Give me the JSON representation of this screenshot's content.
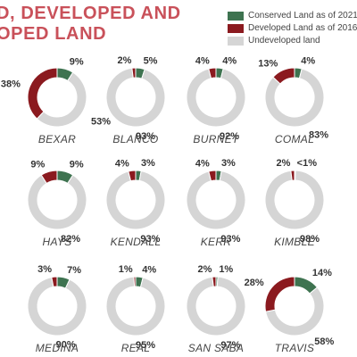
{
  "header": {
    "title_line1": "D, DEVELOPED AND",
    "title_line2": "OPED LAND"
  },
  "colors": {
    "conserved": "#3e7350",
    "developed": "#8b1a1f",
    "undeveloped": "#d5d5d5",
    "title": "#c9515a"
  },
  "legend": [
    {
      "label": "Conserved Land as of 2021",
      "color_key": "conserved"
    },
    {
      "label": "Developed Land as of 2016",
      "color_key": "developed"
    },
    {
      "label": "Undeveloped land",
      "color_key": "undeveloped"
    }
  ],
  "chart_data": {
    "type": "pie",
    "style": "donut",
    "series_names": [
      "Conserved Land as of 2021",
      "Developed Land as of 2016",
      "Undeveloped land"
    ],
    "charts": [
      {
        "county": "BEXAR",
        "conserved": 9,
        "developed": 38,
        "undeveloped": 53,
        "labels": {
          "conserved": "9%",
          "developed": "38%",
          "undeveloped": "53%"
        }
      },
      {
        "county": "BLANCO",
        "conserved": 5,
        "developed": 2,
        "undeveloped": 93,
        "labels": {
          "conserved": "5%",
          "developed": "2%",
          "undeveloped": "93%"
        }
      },
      {
        "county": "BURNET",
        "conserved": 4,
        "developed": 4,
        "undeveloped": 92,
        "labels": {
          "conserved": "4%",
          "developed": "4%",
          "undeveloped": "92%"
        }
      },
      {
        "county": "COMAL",
        "conserved": 4,
        "developed": 13,
        "undeveloped": 83,
        "labels": {
          "conserved": "4%",
          "developed": "13%",
          "undeveloped": "83%"
        }
      },
      {
        "county": "HAYS",
        "conserved": 9,
        "developed": 9,
        "undeveloped": 82,
        "labels": {
          "conserved": "9%",
          "developed": "9%",
          "undeveloped": "82%"
        }
      },
      {
        "county": "KENDALL",
        "conserved": 3,
        "developed": 4,
        "undeveloped": 93,
        "labels": {
          "conserved": "3%",
          "developed": "4%",
          "undeveloped": "93%"
        }
      },
      {
        "county": "KERR",
        "conserved": 3,
        "developed": 4,
        "undeveloped": 93,
        "labels": {
          "conserved": "3%",
          "developed": "4%",
          "undeveloped": "93%"
        }
      },
      {
        "county": "KIMBLE",
        "conserved": 0.5,
        "developed": 2,
        "undeveloped": 98,
        "labels": {
          "conserved": "<1%",
          "developed": "2%",
          "undeveloped": "98%"
        }
      },
      {
        "county": "MEDINA",
        "conserved": 7,
        "developed": 3,
        "undeveloped": 90,
        "labels": {
          "conserved": "7%",
          "developed": "3%",
          "undeveloped": "90%"
        }
      },
      {
        "county": "REAL",
        "conserved": 4,
        "developed": 1,
        "undeveloped": 95,
        "labels": {
          "conserved": "4%",
          "developed": "1%",
          "undeveloped": "95%"
        }
      },
      {
        "county": "SAN SABA",
        "conserved": 1,
        "developed": 2,
        "undeveloped": 97,
        "labels": {
          "conserved": "1%",
          "developed": "2%",
          "undeveloped": "97%"
        }
      },
      {
        "county": "TRAVIS",
        "conserved": 14,
        "developed": 28,
        "undeveloped": 58,
        "labels": {
          "conserved": "14%",
          "developed": "28%",
          "undeveloped": "58%"
        }
      }
    ]
  }
}
